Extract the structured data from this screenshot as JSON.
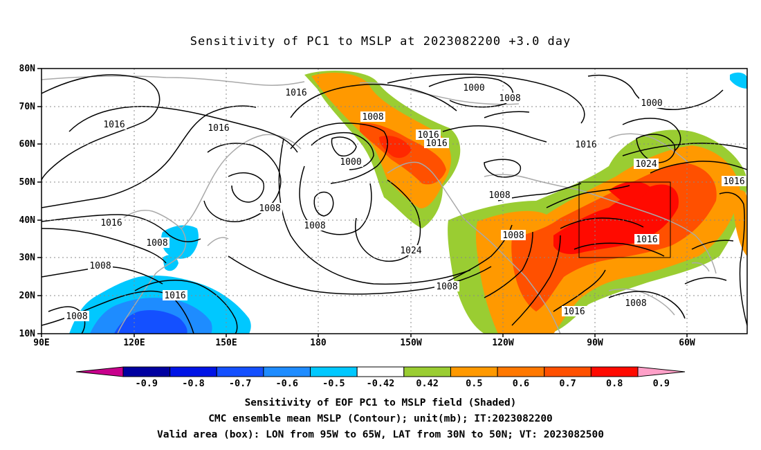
{
  "title": "Sensitivity of PC1 to MSLP at 2023082200 +3.0 day",
  "map": {
    "lat_labels": [
      "80N",
      "70N",
      "60N",
      "50N",
      "40N",
      "30N",
      "20N",
      "10N"
    ],
    "lon_labels": [
      "90E",
      "120E",
      "150E",
      "180",
      "150W",
      "120W",
      "90W",
      "60W"
    ],
    "contour_labels": [
      "1016",
      "1000",
      "1008",
      "1000",
      "1016",
      "1016",
      "1016",
      "1008",
      "1016",
      "1024",
      "1000",
      "1008",
      "1016",
      "1016",
      "1008",
      "1016",
      "1008",
      "1024",
      "1008",
      "1008",
      "1008",
      "1016",
      "1008",
      "1016",
      "1008",
      "1008",
      "1016"
    ],
    "valid_box": {
      "lon_west": -95,
      "lon_east": -65,
      "lat_south": 30,
      "lat_north": 50
    },
    "colors": {
      "positive_low": "#9acd32",
      "positive_mid": "#ff9900",
      "positive_high": "#ff2800",
      "negative_low": "#00c8ff",
      "negative_mid": "#1464ff",
      "negative_high": "#0000c8",
      "coast": "#a9a9a9"
    }
  },
  "colorbar": {
    "labels": [
      "-0.9",
      "-0.8",
      "-0.7",
      "-0.6",
      "-0.5",
      "-0.42",
      "0.42",
      "0.5",
      "0.6",
      "0.7",
      "0.8",
      "0.9"
    ],
    "colors": [
      "#0000a0",
      "#0014e6",
      "#1450ff",
      "#1e8cff",
      "#00c8ff",
      "#ffffff",
      "#9acd32",
      "#ff9900",
      "#ff7800",
      "#ff5000",
      "#ff0a00"
    ],
    "low_end_color": "#c8008c",
    "high_end_color": "#ffa0c8"
  },
  "footer": {
    "line1": "Sensitivity of EOF PC1 to MSLP field (Shaded)",
    "line2": "CMC ensemble mean MSLP (Contour); unit(mb); IT:2023082200",
    "line3": "Valid area (box): LON from 95W to 65W, LAT from 30N to 50N; VT: 2023082500"
  }
}
